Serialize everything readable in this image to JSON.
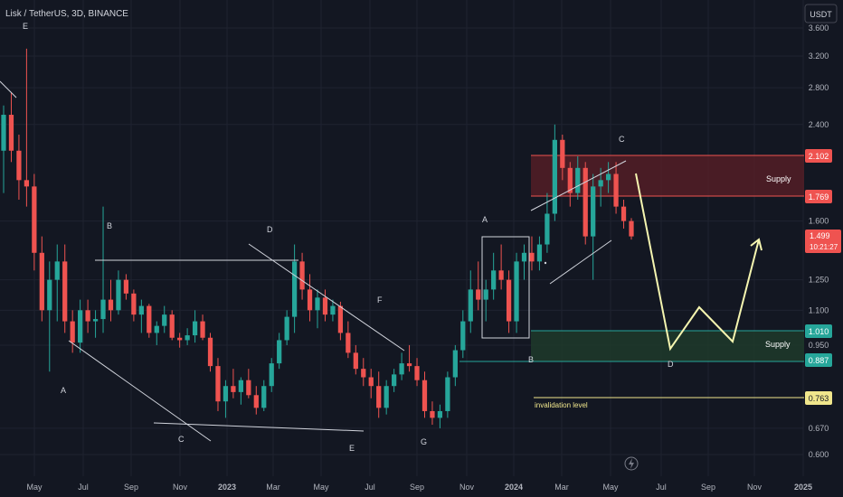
{
  "header": {
    "symbol_title": "Lisk / TetherUS, 3D, BINANCE",
    "currency_button": "USDT"
  },
  "colors": {
    "background": "#131722",
    "grid": "#1f2330",
    "up": "#26a69a",
    "down": "#ef5350",
    "white_line": "#d1d4dc",
    "projection": "#f5f5b0",
    "invalidation": "#f0e68c",
    "supply_top_fill": "#5c1f27",
    "supply_bottom_fill": "#1e3a2a",
    "axis_text": "#b2b5be"
  },
  "chart_data": {
    "type": "candlestick",
    "title": "Lisk / TetherUS, 3D, BINANCE",
    "y_scale": "log",
    "ylim": [
      0.56,
      3.9
    ],
    "y_ticks": [
      "3.600",
      "3.200",
      "2.800",
      "2.400",
      "1.600",
      "1.250",
      "1.100",
      "0.950",
      "0.670",
      "0.600"
    ],
    "x_ticks": [
      "May",
      "Jul",
      "Sep",
      "Nov",
      "2023",
      "Mar",
      "May",
      "Jul",
      "Sep",
      "Nov",
      "2024",
      "Mar",
      "May",
      "Jul",
      "Sep",
      "Nov",
      "2025"
    ],
    "price_labels": [
      {
        "value": "2.102",
        "color": "#ef5350"
      },
      {
        "value": "1.769",
        "color": "#ef5350"
      },
      {
        "value": "1.499",
        "color": "#ef5350",
        "countdown": "10:21:27"
      },
      {
        "value": "1.010",
        "color": "#26a69a"
      },
      {
        "value": "0.887",
        "color": "#26a69a"
      },
      {
        "value": "0.763",
        "color": "#f0e68c",
        "dark_text": true
      }
    ],
    "wave_labels": [
      "E",
      "B",
      "A",
      "C",
      "D",
      "E",
      "F",
      "G",
      "A",
      "B",
      "C",
      "D"
    ],
    "annotations": [
      "Supply",
      "Supply",
      "invalidation level"
    ],
    "price_path": [
      [
        2.15,
        2.6,
        1.8,
        2.5
      ],
      [
        2.5,
        2.75,
        2.05,
        2.15
      ],
      [
        2.15,
        2.3,
        1.75,
        1.9
      ],
      [
        1.9,
        3.3,
        1.7,
        1.85
      ],
      [
        1.85,
        1.95,
        1.3,
        1.4
      ],
      [
        1.4,
        1.5,
        1.05,
        1.1
      ],
      [
        1.1,
        1.35,
        0.85,
        1.25
      ],
      [
        1.25,
        1.45,
        1.05,
        1.35
      ],
      [
        1.35,
        1.45,
        1.0,
        1.05
      ],
      [
        1.05,
        1.1,
        0.92,
        0.96
      ],
      [
        0.96,
        1.15,
        0.92,
        1.1
      ],
      [
        1.1,
        1.15,
        1.0,
        1.05
      ],
      [
        1.05,
        1.1,
        0.98,
        1.06
      ],
      [
        1.06,
        1.7,
        1.0,
        1.15
      ],
      [
        1.15,
        1.25,
        1.05,
        1.1
      ],
      [
        1.1,
        1.3,
        1.08,
        1.25
      ],
      [
        1.25,
        1.28,
        1.15,
        1.18
      ],
      [
        1.18,
        1.2,
        1.05,
        1.08
      ],
      [
        1.08,
        1.15,
        1.0,
        1.12
      ],
      [
        1.12,
        1.13,
        0.98,
        1.0
      ],
      [
        1.0,
        1.05,
        0.95,
        1.03
      ],
      [
        1.03,
        1.12,
        1.0,
        1.08
      ],
      [
        1.08,
        1.1,
        0.97,
        0.98
      ],
      [
        0.98,
        1.0,
        0.94,
        0.97
      ],
      [
        0.97,
        1.02,
        0.95,
        0.99
      ],
      [
        0.99,
        1.1,
        0.96,
        1.05
      ],
      [
        1.05,
        1.08,
        0.97,
        0.98
      ],
      [
        0.98,
        1.0,
        0.85,
        0.87
      ],
      [
        0.87,
        0.9,
        0.72,
        0.75
      ],
      [
        0.75,
        0.82,
        0.7,
        0.8
      ],
      [
        0.8,
        0.86,
        0.76,
        0.78
      ],
      [
        0.78,
        0.83,
        0.74,
        0.82
      ],
      [
        0.82,
        0.86,
        0.76,
        0.77
      ],
      [
        0.77,
        0.8,
        0.71,
        0.73
      ],
      [
        0.73,
        0.82,
        0.72,
        0.8
      ],
      [
        0.8,
        0.9,
        0.78,
        0.88
      ],
      [
        0.88,
        1.0,
        0.86,
        0.97
      ],
      [
        0.97,
        1.1,
        0.95,
        1.07
      ],
      [
        1.07,
        1.45,
        1.0,
        1.35
      ],
      [
        1.35,
        1.4,
        1.15,
        1.2
      ],
      [
        1.2,
        1.28,
        1.05,
        1.1
      ],
      [
        1.1,
        1.2,
        1.02,
        1.16
      ],
      [
        1.16,
        1.2,
        1.05,
        1.08
      ],
      [
        1.08,
        1.15,
        1.05,
        1.12
      ],
      [
        1.12,
        1.14,
        0.97,
        1.0
      ],
      [
        1.0,
        1.05,
        0.9,
        0.92
      ],
      [
        0.92,
        0.95,
        0.84,
        0.86
      ],
      [
        0.86,
        0.9,
        0.8,
        0.83
      ],
      [
        0.83,
        0.86,
        0.76,
        0.8
      ],
      [
        0.8,
        0.85,
        0.7,
        0.73
      ],
      [
        0.73,
        0.82,
        0.71,
        0.8
      ],
      [
        0.8,
        0.86,
        0.78,
        0.84
      ],
      [
        0.84,
        0.92,
        0.82,
        0.88
      ],
      [
        0.88,
        0.95,
        0.85,
        0.87
      ],
      [
        0.87,
        0.9,
        0.8,
        0.82
      ],
      [
        0.82,
        0.85,
        0.7,
        0.72
      ],
      [
        0.72,
        0.75,
        0.68,
        0.7
      ],
      [
        0.7,
        0.74,
        0.67,
        0.72
      ],
      [
        0.72,
        0.85,
        0.7,
        0.83
      ],
      [
        0.83,
        0.95,
        0.8,
        0.93
      ],
      [
        0.93,
        1.1,
        0.9,
        1.05
      ],
      [
        1.05,
        1.3,
        1.0,
        1.2
      ],
      [
        1.2,
        1.35,
        1.1,
        1.15
      ],
      [
        1.15,
        1.25,
        1.05,
        1.2
      ],
      [
        1.2,
        1.4,
        1.15,
        1.3
      ],
      [
        1.3,
        1.45,
        1.2,
        1.25
      ],
      [
        1.25,
        1.3,
        1.0,
        1.05
      ],
      [
        1.05,
        1.4,
        1.0,
        1.35
      ],
      [
        1.35,
        1.45,
        1.25,
        1.4
      ],
      [
        1.4,
        1.5,
        1.3,
        1.35
      ],
      [
        1.35,
        1.5,
        1.3,
        1.45
      ],
      [
        1.45,
        1.8,
        1.4,
        1.65
      ],
      [
        1.65,
        2.4,
        1.6,
        2.25
      ],
      [
        2.25,
        2.3,
        1.9,
        2.0
      ],
      [
        2.0,
        2.05,
        1.7,
        1.8
      ],
      [
        1.8,
        2.1,
        1.75,
        2.0
      ],
      [
        2.0,
        2.05,
        1.45,
        1.5
      ],
      [
        1.5,
        1.95,
        1.25,
        1.85
      ],
      [
        1.85,
        2.0,
        1.7,
        1.9
      ],
      [
        1.9,
        2.05,
        1.8,
        1.95
      ],
      [
        1.95,
        2.05,
        1.65,
        1.7
      ],
      [
        1.7,
        1.75,
        1.55,
        1.6
      ],
      [
        1.6,
        1.62,
        1.48,
        1.5
      ]
    ]
  },
  "labels": {
    "wave": {
      "e1": "E",
      "b1": "B",
      "a1": "A",
      "c1": "C",
      "d1": "D",
      "e2": "E",
      "f1": "F",
      "g1": "G",
      "a2": "A",
      "b2": "B",
      "c2": "C",
      "d2": "D"
    },
    "supply_top": "Supply",
    "supply_bottom": "Supply",
    "invalidation": "invalidation level",
    "countdown": "10:21:27"
  },
  "axis": {
    "y_ticks": [
      "3.600",
      "3.200",
      "2.800",
      "2.400",
      "1.600",
      "1.250",
      "1.100",
      "0.950",
      "0.670",
      "0.600"
    ],
    "x_ticks": [
      "May",
      "Jul",
      "Sep",
      "Nov",
      "2023",
      "Mar",
      "May",
      "Jul",
      "Sep",
      "Nov",
      "2024",
      "Mar",
      "May",
      "Jul",
      "Sep",
      "Nov",
      "2025"
    ],
    "price_tags": [
      "2.102",
      "1.769",
      "1.499",
      "1.010",
      "0.887",
      "0.763"
    ]
  },
  "icons": {
    "lightning": "lightning-icon"
  }
}
